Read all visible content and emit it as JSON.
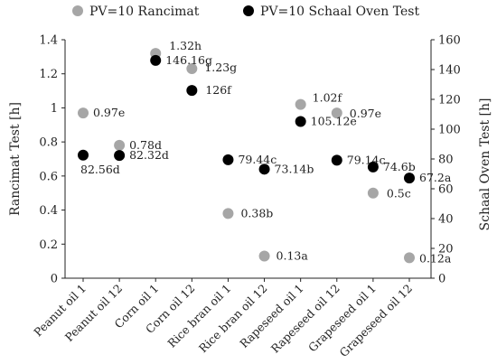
{
  "chart_data": {
    "type": "scatter",
    "categories": [
      "Peanut oil 1",
      "Peanut oil 12",
      "Corn oil 1",
      "Corn oil 12",
      "Rice bran oil 1",
      "Rice bran oil 12",
      "Rapeseed oil 1",
      "Rapeseed oil 12",
      "Grapeseed oil 1",
      "Grapeseed oil 12"
    ],
    "ylabel": "Rancimat Test [h]",
    "y2label": "Schaal Oven Test [h]",
    "ylim": [
      0,
      1.4
    ],
    "y2lim": [
      0,
      160
    ],
    "yticks": [
      "0",
      "0.2",
      "0.4",
      "0.6",
      "0.8",
      "1",
      "1.2",
      "1.4"
    ],
    "y2ticks": [
      "0",
      "20",
      "40",
      "60",
      "80",
      "100",
      "120",
      "140",
      "160"
    ],
    "grid": false,
    "legend_position": "top",
    "series": [
      {
        "name": "PV=10 Rancimat",
        "axis": "left",
        "color": "#a6a6a6",
        "values": [
          0.97,
          0.78,
          1.32,
          1.23,
          0.38,
          0.13,
          1.02,
          0.97,
          0.5,
          0.12
        ],
        "labels": [
          "0.97e",
          "0.78d",
          "1.32h",
          "1.23g",
          "0.38b",
          "0.13a",
          "1.02f",
          "0.97e",
          "0.5c",
          "0.12a"
        ]
      },
      {
        "name": "PV=10 Schaal Oven Test",
        "axis": "right",
        "color": "#000000",
        "values": [
          82.56,
          82.32,
          146.16,
          126,
          79.44,
          73.14,
          105.12,
          79.14,
          74.6,
          67.2
        ],
        "labels": [
          "82.56d",
          "82.32d",
          "146.16g",
          "126f",
          "79.44c",
          "73.14b",
          "105.12e",
          "79.14c",
          "74.6b",
          "67.2a"
        ]
      }
    ]
  }
}
